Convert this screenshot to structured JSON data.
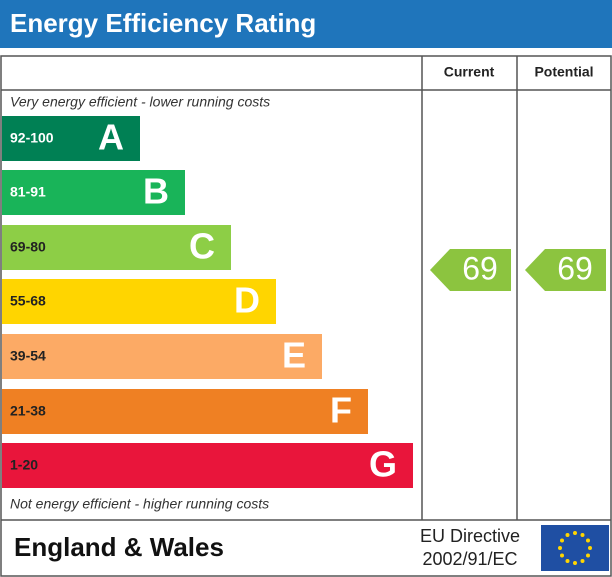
{
  "header": {
    "title": "Energy Efficiency Rating"
  },
  "columns": {
    "current": "Current",
    "potential": "Potential"
  },
  "top_note": "Very energy efficient - lower running costs",
  "bottom_note": "Not energy efficient - higher running costs",
  "bands": [
    {
      "range": "92-100",
      "letter": "A",
      "color": "#008054"
    },
    {
      "range": "81-91",
      "letter": "B",
      "color": "#19b459"
    },
    {
      "range": "69-80",
      "letter": "C",
      "color": "#8dce46"
    },
    {
      "range": "55-68",
      "letter": "D",
      "color": "#ffd500"
    },
    {
      "range": "39-54",
      "letter": "E",
      "color": "#fcaa65"
    },
    {
      "range": "21-38",
      "letter": "F",
      "color": "#ef8023"
    },
    {
      "range": "1-20",
      "letter": "G",
      "color": "#e9153b"
    }
  ],
  "ratings": {
    "current": 69,
    "potential": 69,
    "color": "#8cc43f"
  },
  "footer": {
    "region": "England & Wales",
    "directive_line1": "EU Directive",
    "directive_line2": "2002/91/EC"
  }
}
